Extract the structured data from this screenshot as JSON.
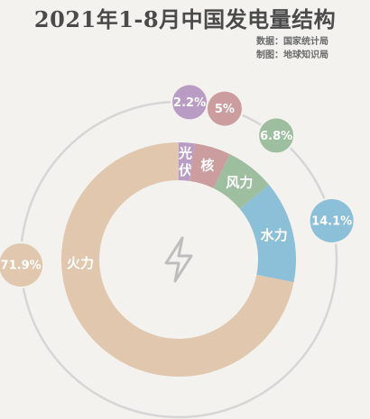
{
  "title": "2021年1-8月中国发电量结构",
  "source_line": "数据：国家统计局",
  "maker_line": "制图：地球知识局",
  "colors": {
    "background": "#f3f2ee",
    "thermal": "#e0c7ae",
    "solar": "#b99cc4",
    "nuclear": "#cc9d9f",
    "wind": "#9ebf9f",
    "hydro": "#8cc0d8",
    "outer_ring": "#d6d6d6",
    "icon": "#bdbdbd"
  },
  "center_icon": "lightning-bolt-icon",
  "chart_data": {
    "type": "pie",
    "donut": true,
    "slices": [
      {
        "key": "solar",
        "label": "光伏",
        "label_lines": [
          "光",
          "伏"
        ],
        "value": 2.2,
        "value_text": "2.2%"
      },
      {
        "key": "nuclear",
        "label": "核",
        "label_lines": [
          "核"
        ],
        "value": 5.0,
        "value_text": "5%"
      },
      {
        "key": "wind",
        "label": "风力",
        "label_lines": [
          "风力"
        ],
        "value": 6.8,
        "value_text": "6.8%"
      },
      {
        "key": "hydro",
        "label": "水力",
        "label_lines": [
          "水力"
        ],
        "value": 14.1,
        "value_text": "14.1%"
      },
      {
        "key": "thermal",
        "label": "火力",
        "label_lines": [
          "火力"
        ],
        "value": 71.9,
        "value_text": "71.9%"
      }
    ]
  }
}
